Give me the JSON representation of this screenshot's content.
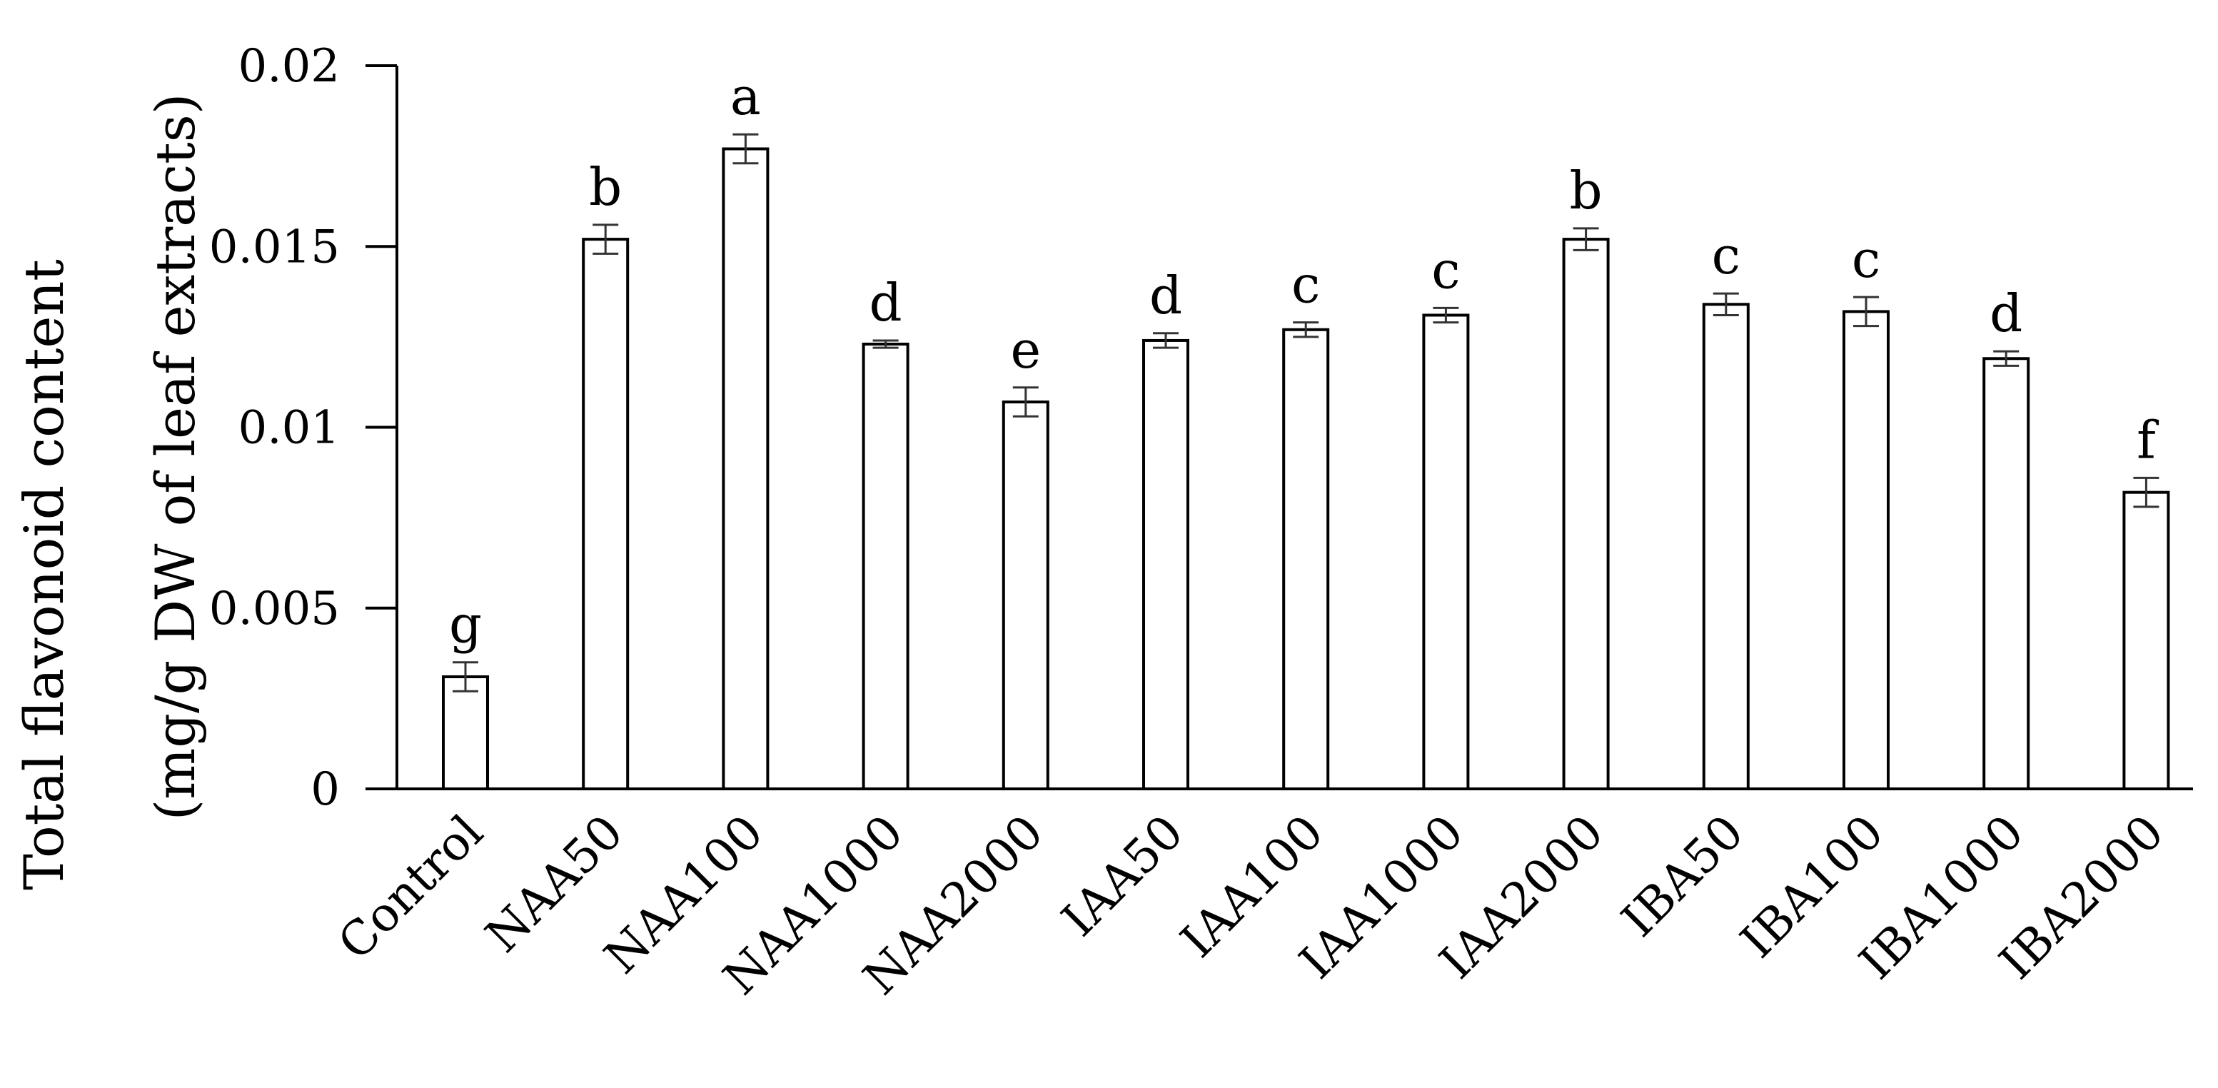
{
  "chart_data": {
    "type": "bar",
    "title": "",
    "ylabel": "Total flavonoid content",
    "ylabel_line2": "(mg/g DW of leaf extracts)",
    "xlabel": "",
    "ylim": [
      0,
      0.02
    ],
    "y_ticks": [
      0,
      0.005,
      0.01,
      0.015,
      0.02
    ],
    "y_tick_labels": [
      "0",
      "0.005",
      "0.01",
      "0.015",
      "0.02"
    ],
    "grid": false,
    "legend": "none",
    "categories": [
      "Control",
      "NAA50",
      "NAA100",
      "NAA1000",
      "NAA2000",
      "IAA50",
      "IAA100",
      "IAA1000",
      "IAA2000",
      "IBA50",
      "IBA100",
      "IBA1000",
      "IBA2000"
    ],
    "values": [
      0.0031,
      0.0152,
      0.0177,
      0.0123,
      0.0107,
      0.0124,
      0.0127,
      0.0131,
      0.0152,
      0.0134,
      0.0132,
      0.0119,
      0.0082
    ],
    "errors": [
      0.0004,
      0.0004,
      0.0004,
      0.0001,
      0.0004,
      0.0002,
      0.0002,
      0.0002,
      0.0003,
      0.0003,
      0.0004,
      0.0002,
      0.0004
    ],
    "significance_letters": [
      "g",
      "b",
      "a",
      "d",
      "e",
      "d",
      "c",
      "c",
      "b",
      "c",
      "c",
      "d",
      "f"
    ],
    "colors": {
      "bar_fill": "#ffffff",
      "bar_stroke": "#000000",
      "axis": "#000000",
      "error_bar": "#333333"
    }
  }
}
